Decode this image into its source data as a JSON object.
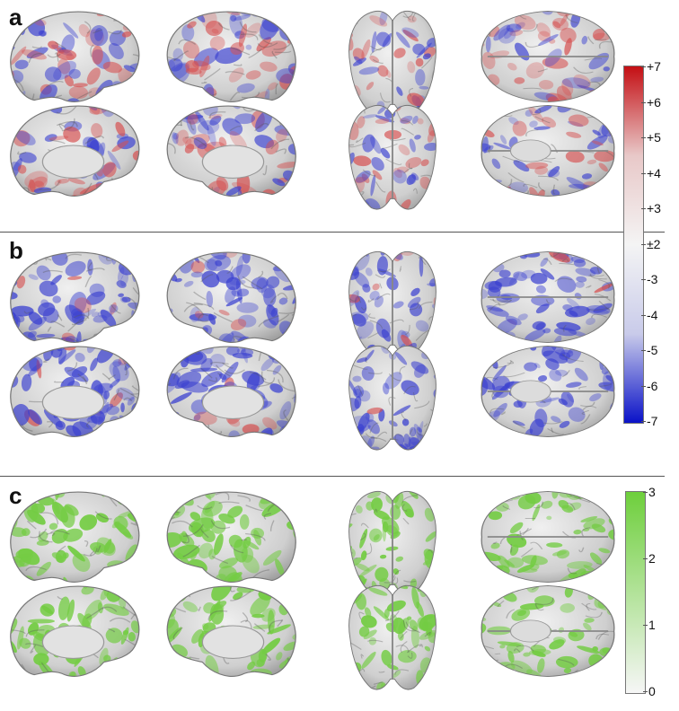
{
  "panels": [
    {
      "label": "a",
      "scheme": "diverging",
      "rows": [
        [
          "lat-left",
          "lat-right",
          "front",
          "top"
        ],
        [
          "med-left",
          "med-right",
          "back",
          "bottom"
        ]
      ]
    },
    {
      "label": "b",
      "scheme": "blue",
      "rows": [
        [
          "lat-left",
          "lat-right",
          "front",
          "top"
        ],
        [
          "med-left",
          "med-right",
          "back",
          "bottom"
        ]
      ]
    },
    {
      "label": "c",
      "scheme": "green",
      "rows": [
        [
          "lat-left",
          "lat-right",
          "front",
          "top"
        ],
        [
          "med-left",
          "med-right",
          "back",
          "bottom"
        ]
      ]
    }
  ],
  "colorbars": {
    "diverging": {
      "ticks": [
        "+7",
        "+6",
        "+5",
        "+4",
        "+3",
        "±2",
        "-3",
        "-4",
        "-5",
        "-6",
        "-7"
      ],
      "colors": [
        "#c40f14",
        "#e8c8c8",
        "#f4f4f4",
        "#c9cbea",
        "#0a12c8"
      ]
    },
    "green": {
      "ticks": [
        "3",
        "2",
        "1",
        "0"
      ],
      "colors": [
        "#6ecf3c",
        "#f6f6f6"
      ]
    }
  },
  "surface_colors": {
    "gray": "#c8c8c8",
    "red": "#d65050",
    "blue": "#3a40d0",
    "green": "#74cc44"
  }
}
